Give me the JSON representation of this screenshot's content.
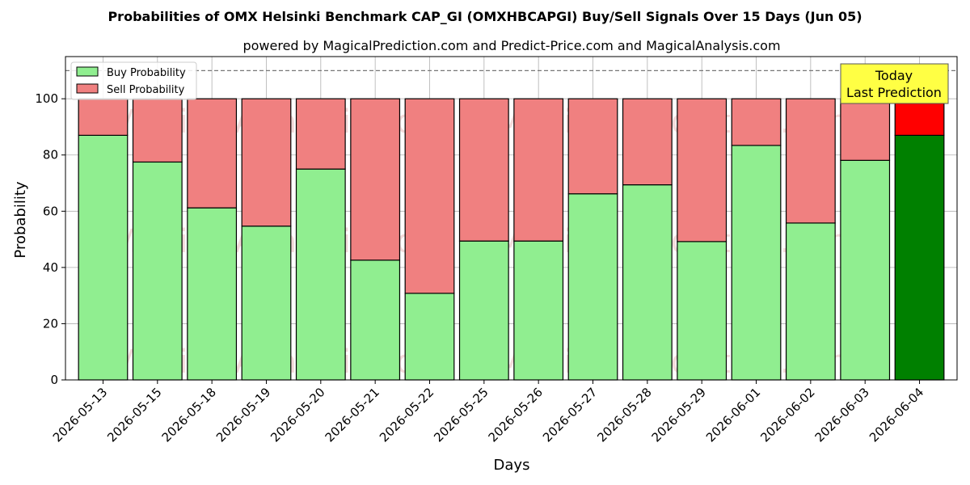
{
  "chart_data": {
    "type": "bar",
    "stacked": true,
    "title": "Probabilities of OMX Helsinki Benchmark CAP_GI (OMXHBCAPGI) Buy/Sell Signals Over 15 Days (Jun 05)",
    "subtitle": "powered by MagicalPrediction.com and Predict-Price.com and MagicalAnalysis.com",
    "xlabel": "Days",
    "ylabel": "Probability",
    "ylim": [
      0,
      115
    ],
    "yticks": [
      0,
      20,
      40,
      60,
      80,
      100
    ],
    "grid": true,
    "legend_position": "top-left",
    "reference_line": 110,
    "categories": [
      "2026-05-13",
      "2026-05-15",
      "2026-05-18",
      "2026-05-19",
      "2026-05-20",
      "2026-05-21",
      "2026-05-22",
      "2026-05-25",
      "2026-05-26",
      "2026-05-27",
      "2026-05-28",
      "2026-05-29",
      "2026-06-01",
      "2026-06-02",
      "2026-06-03",
      "2026-06-04"
    ],
    "series": [
      {
        "name": "Buy Probability",
        "color": "#90ee90",
        "values": [
          87,
          77.5,
          61.2,
          54.7,
          75,
          42.6,
          30.8,
          49.4,
          49.4,
          66.2,
          69.4,
          49.2,
          83.4,
          55.8,
          78.1,
          87
        ]
      },
      {
        "name": "Sell Probability",
        "color": "#f08080",
        "values": [
          13,
          22.5,
          38.8,
          45.3,
          25,
          57.4,
          69.2,
          50.6,
          50.6,
          33.8,
          30.6,
          50.8,
          16.6,
          44.2,
          21.9,
          13
        ]
      }
    ],
    "highlight": {
      "index": 15,
      "buy_color": "#008000",
      "sell_color": "#ff0000"
    },
    "annotation": {
      "lines": [
        "Today",
        "Last Prediction"
      ],
      "background": "#ffff44"
    },
    "watermarks": [
      "MagicalAnalysis.com",
      "MagicalPrediction.com"
    ]
  }
}
